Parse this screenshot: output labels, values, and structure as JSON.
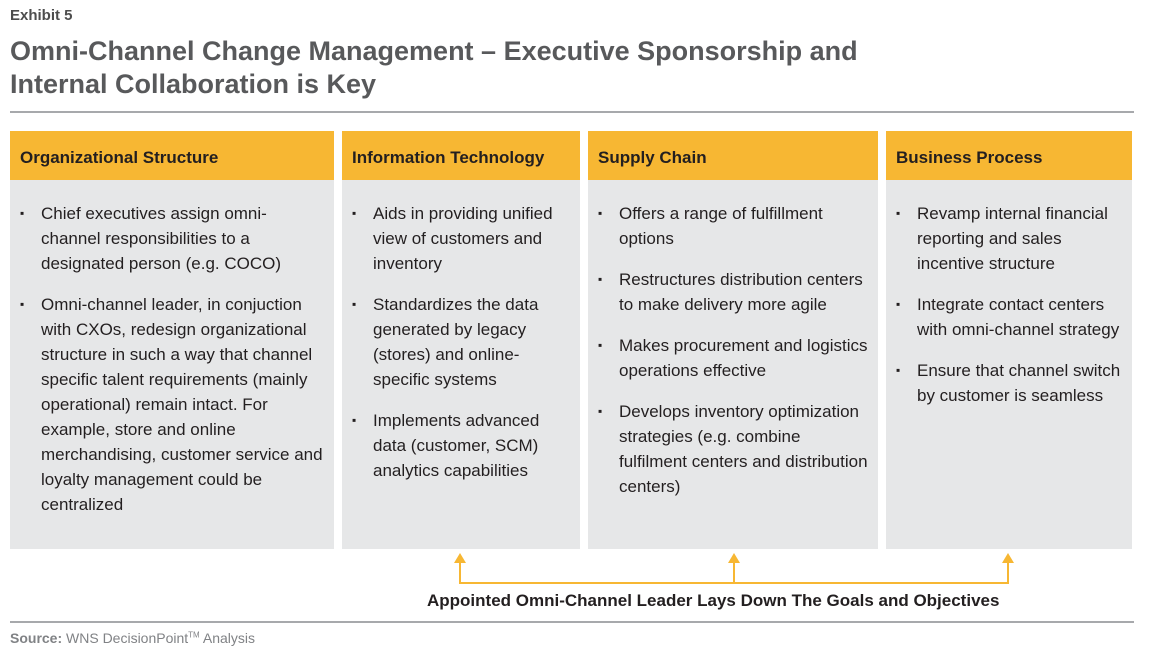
{
  "header": {
    "exhibit": "Exhibit 5",
    "title_line1": "Omni-Channel Change Management – Executive Sponsorship and",
    "title_line2": "Internal Collaboration is Key"
  },
  "columns": [
    {
      "heading": "Organizational Structure",
      "items": [
        "Chief executives assign omni-channel responsibilities to a designated person (e.g. COCO)",
        "Omni-channel leader, in conjuction with CXOs, redesign organizational structure in such a way that channel specific talent requirements (mainly operational) remain intact. For example, store and online merchandising, customer service and loyalty management could be centralized"
      ]
    },
    {
      "heading": "Information Technology",
      "items": [
        "Aids in providing unified view of customers and inventory",
        "Standardizes the data generated by legacy (stores) and online-specific systems",
        "Implements advanced data (customer, SCM) analytics capabilities"
      ]
    },
    {
      "heading": "Supply Chain",
      "items": [
        "Offers a range of fulfillment options",
        "Restructures distribution centers to make delivery more agile",
        "Makes procurement and logistics operations effective",
        "Develops inventory optimization strategies (e.g. combine fulfilment centers and distribution centers)"
      ]
    },
    {
      "heading": "Business Process",
      "items": [
        "Revamp internal financial reporting and sales incentive structure",
        "Integrate contact centers with omni-channel strategy",
        "Ensure that channel switch by customer is seamless"
      ]
    }
  ],
  "bullet_char": "▪",
  "leader_text": "Appointed Omni-Channel Leader Lays Down The Goals and Objectives",
  "source": {
    "label": "Source:",
    "text": "WNS DecisionPoint",
    "tm": "TM",
    "suffix": "Analysis"
  },
  "colors": {
    "header_fill": "#f7b733",
    "column_fill": "#e6e7e8",
    "arrow": "#f7b733"
  }
}
